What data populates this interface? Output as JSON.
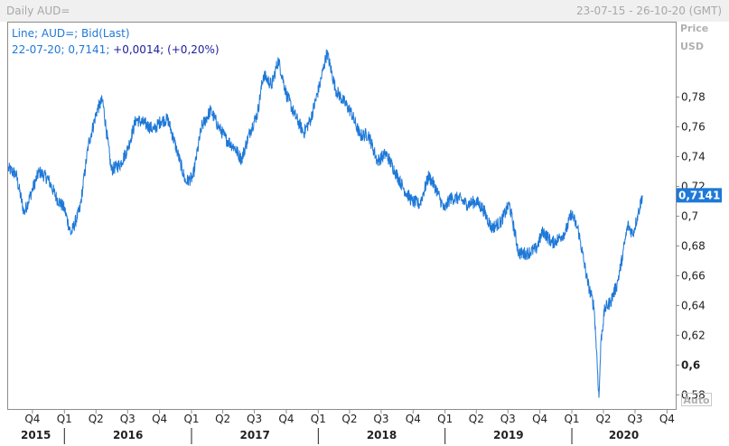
{
  "header": {
    "title": "Daily AUD=",
    "range": "23-07-15 - 26-10-20 (GMT)"
  },
  "legend": {
    "line1": "Line; AUD=; Bid(Last)",
    "line2_prefix": "22-07-20; 0,7141; ",
    "line2_change": "+0,0014; (+0,20%)"
  },
  "axis": {
    "price_label": "Price",
    "unit_label": "USD",
    "auto_label": "Auto"
  },
  "colors": {
    "line": "#1e78d8",
    "last_tag": "#1e78d8"
  },
  "chart_data": {
    "type": "line",
    "title": "Daily AUD=",
    "series": [
      {
        "name": "AUD=",
        "x": [
          "2015-07-23",
          "2015-08-15",
          "2015-09-07",
          "2015-10-01",
          "2015-10-20",
          "2015-11-15",
          "2015-12-10",
          "2016-01-01",
          "2016-01-20",
          "2016-02-15",
          "2016-03-10",
          "2016-04-05",
          "2016-04-20",
          "2016-05-15",
          "2016-06-10",
          "2016-07-01",
          "2016-07-25",
          "2016-08-20",
          "2016-09-15",
          "2016-10-05",
          "2016-10-25",
          "2016-11-20",
          "2016-12-15",
          "2017-01-05",
          "2017-01-30",
          "2017-02-25",
          "2017-03-20",
          "2017-04-10",
          "2017-05-05",
          "2017-05-25",
          "2017-06-20",
          "2017-07-10",
          "2017-07-27",
          "2017-08-20",
          "2017-09-08",
          "2017-10-01",
          "2017-10-25",
          "2017-11-20",
          "2017-12-10",
          "2018-01-05",
          "2018-01-26",
          "2018-02-20",
          "2018-03-15",
          "2018-04-05",
          "2018-05-01",
          "2018-05-25",
          "2018-06-20",
          "2018-07-15",
          "2018-08-10",
          "2018-09-05",
          "2018-09-28",
          "2018-10-20",
          "2018-11-15",
          "2018-12-05",
          "2018-12-30",
          "2019-01-15",
          "2019-02-10",
          "2019-03-05",
          "2019-04-01",
          "2019-04-20",
          "2019-05-15",
          "2019-06-10",
          "2019-07-05",
          "2019-08-01",
          "2019-08-25",
          "2019-09-20",
          "2019-10-10",
          "2019-11-05",
          "2019-11-25",
          "2019-12-15",
          "2019-12-31",
          "2020-01-20",
          "2020-02-15",
          "2020-03-05",
          "2020-03-12",
          "2020-03-19",
          "2020-03-25",
          "2020-04-05",
          "2020-04-20",
          "2020-05-10",
          "2020-05-25",
          "2020-06-10",
          "2020-06-25",
          "2020-07-10",
          "2020-07-22"
        ],
        "y": [
          0.732,
          0.728,
          0.702,
          0.718,
          0.73,
          0.725,
          0.712,
          0.705,
          0.688,
          0.705,
          0.748,
          0.772,
          0.778,
          0.731,
          0.735,
          0.745,
          0.765,
          0.762,
          0.758,
          0.764,
          0.765,
          0.744,
          0.723,
          0.726,
          0.76,
          0.771,
          0.76,
          0.752,
          0.746,
          0.738,
          0.758,
          0.769,
          0.795,
          0.788,
          0.805,
          0.782,
          0.768,
          0.756,
          0.765,
          0.788,
          0.81,
          0.785,
          0.777,
          0.77,
          0.754,
          0.755,
          0.737,
          0.742,
          0.73,
          0.718,
          0.71,
          0.708,
          0.727,
          0.719,
          0.704,
          0.712,
          0.712,
          0.708,
          0.71,
          0.705,
          0.692,
          0.696,
          0.708,
          0.675,
          0.675,
          0.678,
          0.69,
          0.682,
          0.685,
          0.69,
          0.702,
          0.69,
          0.656,
          0.639,
          0.61,
          0.578,
          0.617,
          0.638,
          0.642,
          0.654,
          0.672,
          0.694,
          0.688,
          0.702,
          0.714
        ]
      }
    ],
    "xlim": [
      "2015-07-23",
      "2020-10-26"
    ],
    "ylim": [
      0.5705,
      0.83
    ],
    "y_ticks": [
      "0,58",
      "0,6",
      "0,62",
      "0,64",
      "0,66",
      "0,68",
      "0,7",
      "0,72",
      "0,74",
      "0,76",
      "0,78"
    ],
    "y_tick_values": [
      0.58,
      0.6,
      0.62,
      0.64,
      0.66,
      0.68,
      0.7,
      0.72,
      0.74,
      0.76,
      0.78
    ],
    "quarter_ticks": [
      {
        "label": "Q4",
        "date": "2015-10-01"
      },
      {
        "label": "Q1",
        "date": "2016-01-01"
      },
      {
        "label": "Q2",
        "date": "2016-04-01"
      },
      {
        "label": "Q3",
        "date": "2016-07-01"
      },
      {
        "label": "Q4",
        "date": "2016-10-01"
      },
      {
        "label": "Q1",
        "date": "2017-01-01"
      },
      {
        "label": "Q2",
        "date": "2017-04-01"
      },
      {
        "label": "Q3",
        "date": "2017-07-01"
      },
      {
        "label": "Q4",
        "date": "2017-10-01"
      },
      {
        "label": "Q1",
        "date": "2018-01-01"
      },
      {
        "label": "Q2",
        "date": "2018-04-01"
      },
      {
        "label": "Q3",
        "date": "2018-07-01"
      },
      {
        "label": "Q4",
        "date": "2018-10-01"
      },
      {
        "label": "Q1",
        "date": "2019-01-01"
      },
      {
        "label": "Q2",
        "date": "2019-04-01"
      },
      {
        "label": "Q3",
        "date": "2019-07-01"
      },
      {
        "label": "Q4",
        "date": "2019-10-01"
      },
      {
        "label": "Q1",
        "date": "2020-01-01"
      },
      {
        "label": "Q2",
        "date": "2020-04-01"
      },
      {
        "label": "Q3",
        "date": "2020-07-01"
      },
      {
        "label": "Q4",
        "date": "2020-10-01"
      }
    ],
    "year_labels": [
      {
        "label": "2015",
        "date": "2015-07-23",
        "end": "2016-01-01"
      },
      {
        "label": "2016",
        "date": "2016-01-01",
        "end": "2017-01-01"
      },
      {
        "label": "2017",
        "date": "2017-01-01",
        "end": "2018-01-01"
      },
      {
        "label": "2018",
        "date": "2018-01-01",
        "end": "2019-01-01"
      },
      {
        "label": "2019",
        "date": "2019-01-01",
        "end": "2020-01-01"
      },
      {
        "label": "2020",
        "date": "2020-01-01",
        "end": "2020-10-26"
      }
    ],
    "last_value": "0,7141",
    "grid": false
  }
}
